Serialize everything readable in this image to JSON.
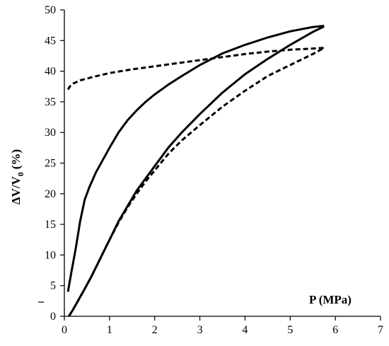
{
  "chart_data": {
    "type": "line",
    "xlabel": "P (MPa)",
    "ylabel": "ΔV/V",
    "ylabel_subscript": "0",
    "ylabel_unit": "(%)",
    "xlim": [
      0,
      7
    ],
    "ylim": [
      0,
      50
    ],
    "x_ticks": [
      "0",
      "1",
      "2",
      "3",
      "4",
      "5",
      "6",
      "7"
    ],
    "y_ticks": [
      "0",
      "5",
      "10",
      "15",
      "20",
      "25",
      "30",
      "35",
      "40",
      "45",
      "50"
    ],
    "grid": false,
    "series": [
      {
        "style": "solid",
        "points": [
          [
            0.08,
            4
          ],
          [
            0.15,
            7
          ],
          [
            0.25,
            11
          ],
          [
            0.35,
            15.5
          ],
          [
            0.45,
            19
          ],
          [
            0.55,
            21
          ],
          [
            0.7,
            23.5
          ],
          [
            0.85,
            25.5
          ],
          [
            1.0,
            27.5
          ],
          [
            1.2,
            30
          ],
          [
            1.4,
            32
          ],
          [
            1.6,
            33.6
          ],
          [
            1.8,
            35
          ],
          [
            2.0,
            36.2
          ],
          [
            2.3,
            37.8
          ],
          [
            2.6,
            39.2
          ],
          [
            3.0,
            41
          ],
          [
            3.5,
            42.9
          ],
          [
            4.0,
            44.3
          ],
          [
            4.5,
            45.5
          ],
          [
            5.0,
            46.5
          ],
          [
            5.5,
            47.2
          ],
          [
            5.75,
            47.4
          ]
        ]
      },
      {
        "style": "solid",
        "points": [
          [
            0.1,
            0
          ],
          [
            0.2,
            1.2
          ],
          [
            0.4,
            3.8
          ],
          [
            0.6,
            6.5
          ],
          [
            0.8,
            9.5
          ],
          [
            1.0,
            12.5
          ],
          [
            1.2,
            15.5
          ],
          [
            1.4,
            18
          ],
          [
            1.6,
            20.5
          ],
          [
            1.8,
            22.5
          ],
          [
            2.0,
            24.5
          ],
          [
            2.3,
            27.5
          ],
          [
            2.6,
            30
          ],
          [
            3.0,
            33
          ],
          [
            3.5,
            36.5
          ],
          [
            4.0,
            39.5
          ],
          [
            4.5,
            42
          ],
          [
            5.0,
            44.3
          ],
          [
            5.5,
            46.4
          ],
          [
            5.75,
            47.3
          ]
        ]
      },
      {
        "style": "dashed",
        "points": [
          [
            0.1,
            0
          ],
          [
            0.2,
            1.2
          ],
          [
            0.4,
            3.8
          ],
          [
            0.6,
            6.5
          ],
          [
            0.8,
            9.5
          ],
          [
            1.0,
            12.5
          ],
          [
            1.2,
            15.3
          ],
          [
            1.4,
            17.8
          ],
          [
            1.6,
            20
          ],
          [
            1.8,
            22
          ],
          [
            2.0,
            23.8
          ],
          [
            2.3,
            26.5
          ],
          [
            2.6,
            28.7
          ],
          [
            3.0,
            31.2
          ],
          [
            3.5,
            34.2
          ],
          [
            4.0,
            36.8
          ],
          [
            4.5,
            39.2
          ],
          [
            5.0,
            41
          ],
          [
            5.5,
            42.8
          ],
          [
            5.75,
            43.8
          ]
        ]
      },
      {
        "style": "dashed",
        "points": [
          [
            0.08,
            37
          ],
          [
            0.12,
            37.5
          ],
          [
            0.2,
            38
          ],
          [
            0.35,
            38.5
          ],
          [
            0.6,
            39
          ],
          [
            1.0,
            39.7
          ],
          [
            1.5,
            40.3
          ],
          [
            2.0,
            40.8
          ],
          [
            2.5,
            41.3
          ],
          [
            3.0,
            41.8
          ],
          [
            3.5,
            42.3
          ],
          [
            4.0,
            42.8
          ],
          [
            4.5,
            43.2
          ],
          [
            5.0,
            43.5
          ],
          [
            5.5,
            43.7
          ],
          [
            5.75,
            43.8
          ]
        ]
      }
    ]
  }
}
